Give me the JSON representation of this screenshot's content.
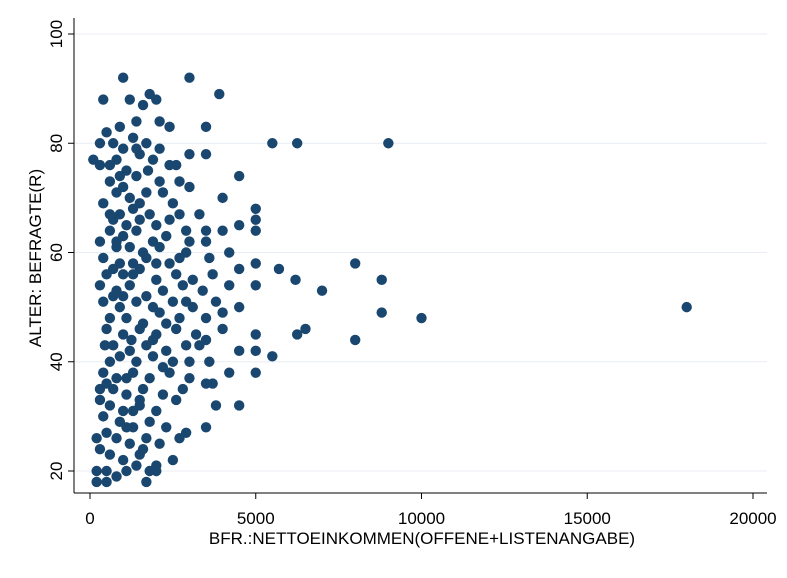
{
  "chart_data": {
    "type": "scatter",
    "title": "",
    "xlabel": "BFR.:NETTOEINKOMMEN(OFFENE+LISTENANGABE)",
    "ylabel": "ALTER: BEFRAGTE(R)",
    "xlim": [
      0,
      20000
    ],
    "ylim": [
      18,
      100
    ],
    "xticks": [
      0,
      5000,
      10000,
      15000,
      20000
    ],
    "yticks": [
      20,
      40,
      60,
      80,
      100
    ],
    "grid": "horizontal",
    "legend": "none",
    "marker_color": "#1a476f",
    "background": "#ffffff",
    "points": [
      [
        1000,
        92
      ],
      [
        3000,
        92
      ],
      [
        400,
        88
      ],
      [
        1200,
        88
      ],
      [
        1600,
        87
      ],
      [
        1800,
        89
      ],
      [
        2000,
        88
      ],
      [
        3900,
        89
      ],
      [
        500,
        82
      ],
      [
        900,
        83
      ],
      [
        1400,
        84
      ],
      [
        2100,
        84
      ],
      [
        2400,
        83
      ],
      [
        3500,
        83
      ],
      [
        700,
        80
      ],
      [
        1300,
        81
      ],
      [
        1700,
        80
      ],
      [
        1000,
        79
      ],
      [
        300,
        80
      ],
      [
        5500,
        80
      ],
      [
        6250,
        80
      ],
      [
        9000,
        80
      ],
      [
        3000,
        78
      ],
      [
        3500,
        78
      ],
      [
        100,
        77
      ],
      [
        300,
        76
      ],
      [
        600,
        76
      ],
      [
        800,
        77
      ],
      [
        1100,
        75
      ],
      [
        1500,
        78
      ],
      [
        1900,
        77
      ],
      [
        2400,
        76
      ],
      [
        2600,
        76
      ],
      [
        4500,
        74
      ],
      [
        600,
        73
      ],
      [
        1000,
        72
      ],
      [
        1400,
        74
      ],
      [
        2100,
        73
      ],
      [
        2700,
        73
      ],
      [
        3000,
        72
      ],
      [
        800,
        71
      ],
      [
        1200,
        70
      ],
      [
        1700,
        71
      ],
      [
        2200,
        71
      ],
      [
        4000,
        70
      ],
      [
        400,
        69
      ],
      [
        900,
        67
      ],
      [
        1300,
        68
      ],
      [
        1800,
        67
      ],
      [
        2500,
        69
      ],
      [
        5000,
        68
      ],
      [
        700,
        66
      ],
      [
        1100,
        65
      ],
      [
        1500,
        66
      ],
      [
        2000,
        65
      ],
      [
        2700,
        67
      ],
      [
        3300,
        67
      ],
      [
        5000,
        66
      ],
      [
        600,
        64
      ],
      [
        1000,
        63
      ],
      [
        1400,
        64
      ],
      [
        1900,
        62
      ],
      [
        2300,
        63
      ],
      [
        2900,
        64
      ],
      [
        3500,
        64
      ],
      [
        4000,
        64
      ],
      [
        4500,
        65
      ],
      [
        5000,
        64
      ],
      [
        300,
        62
      ],
      [
        800,
        61
      ],
      [
        1200,
        61
      ],
      [
        1600,
        60
      ],
      [
        2100,
        61
      ],
      [
        3000,
        62
      ],
      [
        3500,
        62
      ],
      [
        400,
        59
      ],
      [
        900,
        58
      ],
      [
        1300,
        58
      ],
      [
        1700,
        59
      ],
      [
        2400,
        58
      ],
      [
        2900,
        60
      ],
      [
        3600,
        59
      ],
      [
        4200,
        60
      ],
      [
        5000,
        58
      ],
      [
        8000,
        58
      ],
      [
        500,
        56
      ],
      [
        1000,
        56
      ],
      [
        1500,
        57
      ],
      [
        2000,
        55
      ],
      [
        2600,
        56
      ],
      [
        3100,
        55
      ],
      [
        3700,
        56
      ],
      [
        4500,
        57
      ],
      [
        5700,
        57
      ],
      [
        6200,
        55
      ],
      [
        8800,
        55
      ],
      [
        300,
        54
      ],
      [
        800,
        53
      ],
      [
        1200,
        54
      ],
      [
        1700,
        52
      ],
      [
        2200,
        53
      ],
      [
        2800,
        54
      ],
      [
        3400,
        53
      ],
      [
        4200,
        54
      ],
      [
        5000,
        54
      ],
      [
        7000,
        53
      ],
      [
        400,
        51
      ],
      [
        900,
        50
      ],
      [
        1400,
        51
      ],
      [
        1900,
        50
      ],
      [
        2500,
        51
      ],
      [
        3100,
        50
      ],
      [
        3800,
        51
      ],
      [
        4500,
        50
      ],
      [
        18000,
        50
      ],
      [
        600,
        48
      ],
      [
        1100,
        48
      ],
      [
        1600,
        47
      ],
      [
        2100,
        49
      ],
      [
        2700,
        48
      ],
      [
        3500,
        48
      ],
      [
        4000,
        49
      ],
      [
        8800,
        49
      ],
      [
        10000,
        48
      ],
      [
        500,
        46
      ],
      [
        1000,
        45
      ],
      [
        1500,
        46
      ],
      [
        2000,
        45
      ],
      [
        2600,
        46
      ],
      [
        3200,
        45
      ],
      [
        4000,
        46
      ],
      [
        5000,
        45
      ],
      [
        6250,
        45
      ],
      [
        6500,
        46
      ],
      [
        700,
        43
      ],
      [
        1200,
        42
      ],
      [
        1700,
        43
      ],
      [
        2300,
        42
      ],
      [
        2900,
        43
      ],
      [
        3500,
        44
      ],
      [
        8000,
        44
      ],
      [
        900,
        41
      ],
      [
        1400,
        40
      ],
      [
        1900,
        41
      ],
      [
        2500,
        40
      ],
      [
        3000,
        40
      ],
      [
        3600,
        40
      ],
      [
        4500,
        42
      ],
      [
        5000,
        42
      ],
      [
        5500,
        41
      ],
      [
        400,
        38
      ],
      [
        800,
        37
      ],
      [
        1300,
        38
      ],
      [
        1800,
        37
      ],
      [
        2400,
        38
      ],
      [
        3000,
        37
      ],
      [
        4200,
        38
      ],
      [
        5000,
        38
      ],
      [
        300,
        35
      ],
      [
        700,
        35
      ],
      [
        1100,
        34
      ],
      [
        1600,
        35
      ],
      [
        2200,
        34
      ],
      [
        2800,
        35
      ],
      [
        3500,
        36
      ],
      [
        3700,
        36
      ],
      [
        300,
        33
      ],
      [
        600,
        32
      ],
      [
        1000,
        31
      ],
      [
        1500,
        32
      ],
      [
        2000,
        31
      ],
      [
        2600,
        33
      ],
      [
        3800,
        32
      ],
      [
        4500,
        32
      ],
      [
        400,
        30
      ],
      [
        900,
        29
      ],
      [
        1300,
        28
      ],
      [
        1800,
        29
      ],
      [
        2300,
        28
      ],
      [
        2900,
        27
      ],
      [
        3500,
        28
      ],
      [
        200,
        26
      ],
      [
        500,
        27
      ],
      [
        800,
        26
      ],
      [
        1200,
        25
      ],
      [
        1700,
        26
      ],
      [
        2100,
        25
      ],
      [
        2700,
        26
      ],
      [
        300,
        24
      ],
      [
        600,
        23
      ],
      [
        1000,
        22
      ],
      [
        1500,
        23
      ],
      [
        2000,
        21
      ],
      [
        2500,
        22
      ],
      [
        200,
        20
      ],
      [
        500,
        20
      ],
      [
        800,
        19
      ],
      [
        1100,
        20
      ],
      [
        1400,
        21
      ],
      [
        1800,
        20
      ],
      [
        2000,
        20
      ],
      [
        200,
        18
      ],
      [
        500,
        18
      ],
      [
        1700,
        18
      ],
      [
        600,
        40
      ],
      [
        1100,
        37
      ],
      [
        2000,
        58
      ],
      [
        1500,
        69
      ],
      [
        1250,
        44
      ],
      [
        700,
        52
      ],
      [
        2300,
        47
      ],
      [
        1500,
        33
      ],
      [
        900,
        74
      ],
      [
        1300,
        56
      ],
      [
        2700,
        59
      ],
      [
        450,
        43
      ],
      [
        1750,
        75
      ],
      [
        1100,
        28
      ],
      [
        2900,
        51
      ],
      [
        800,
        62
      ],
      [
        1400,
        79
      ],
      [
        2200,
        39
      ],
      [
        600,
        67
      ],
      [
        1600,
        24
      ],
      [
        1300,
        31
      ],
      [
        1900,
        44
      ],
      [
        2400,
        66
      ],
      [
        700,
        57
      ],
      [
        3300,
        43
      ],
      [
        1000,
        52
      ],
      [
        500,
        36
      ],
      [
        2100,
        79
      ]
    ]
  }
}
